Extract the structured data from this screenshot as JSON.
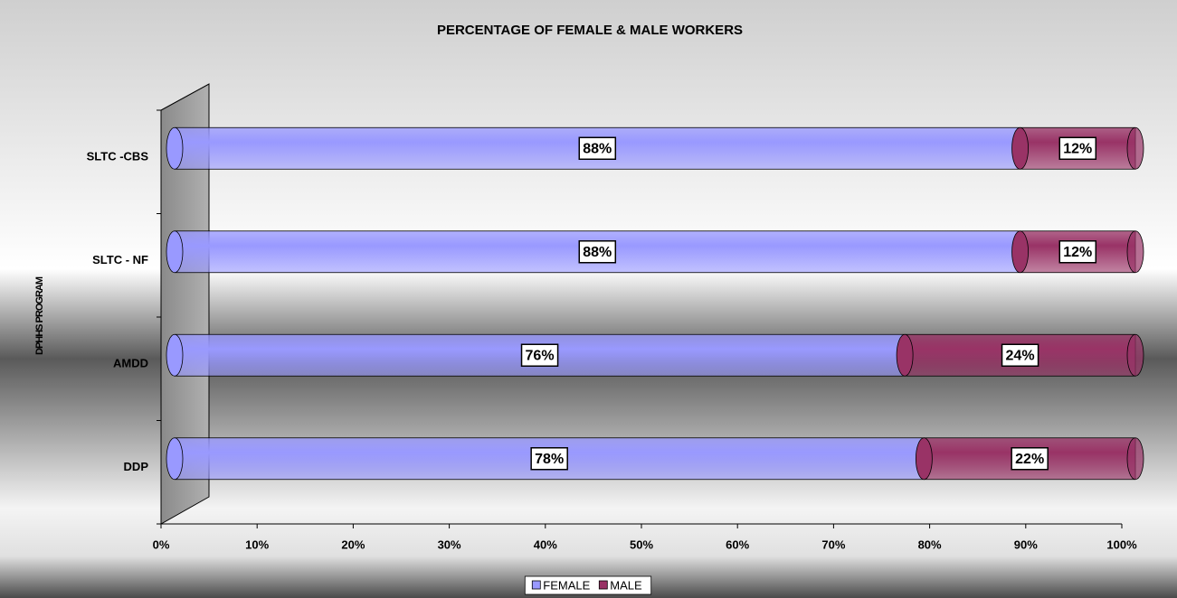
{
  "chart_data": {
    "type": "stacked-bar-horizontal",
    "title": "PERCENTAGE OF FEMALE & MALE WORKERS",
    "ylabel": "DPHHS PROGRAM",
    "categories": [
      "DDP",
      "AMDD",
      "SLTC - NF",
      "SLTC -CBS"
    ],
    "series": [
      {
        "name": "FEMALE",
        "color": "#9999ff",
        "values": [
          78,
          76,
          88,
          88
        ],
        "value_labels": [
          "78%",
          "76%",
          "88%",
          "88%"
        ]
      },
      {
        "name": "MALE",
        "color": "#993366",
        "values": [
          22,
          24,
          12,
          12
        ],
        "value_labels": [
          "22%",
          "24%",
          "12%",
          "12%"
        ]
      }
    ],
    "xlim": [
      0,
      100
    ],
    "xticks": [
      {
        "value": 0,
        "label": "0%"
      },
      {
        "value": 10,
        "label": "10%"
      },
      {
        "value": 20,
        "label": "20%"
      },
      {
        "value": 30,
        "label": "30%"
      },
      {
        "value": 40,
        "label": "40%"
      },
      {
        "value": 50,
        "label": "50%"
      },
      {
        "value": 60,
        "label": "60%"
      },
      {
        "value": 70,
        "label": "70%"
      },
      {
        "value": 80,
        "label": "80%"
      },
      {
        "value": 90,
        "label": "90%"
      },
      {
        "value": 100,
        "label": "100%"
      }
    ],
    "legend": "bottom"
  }
}
